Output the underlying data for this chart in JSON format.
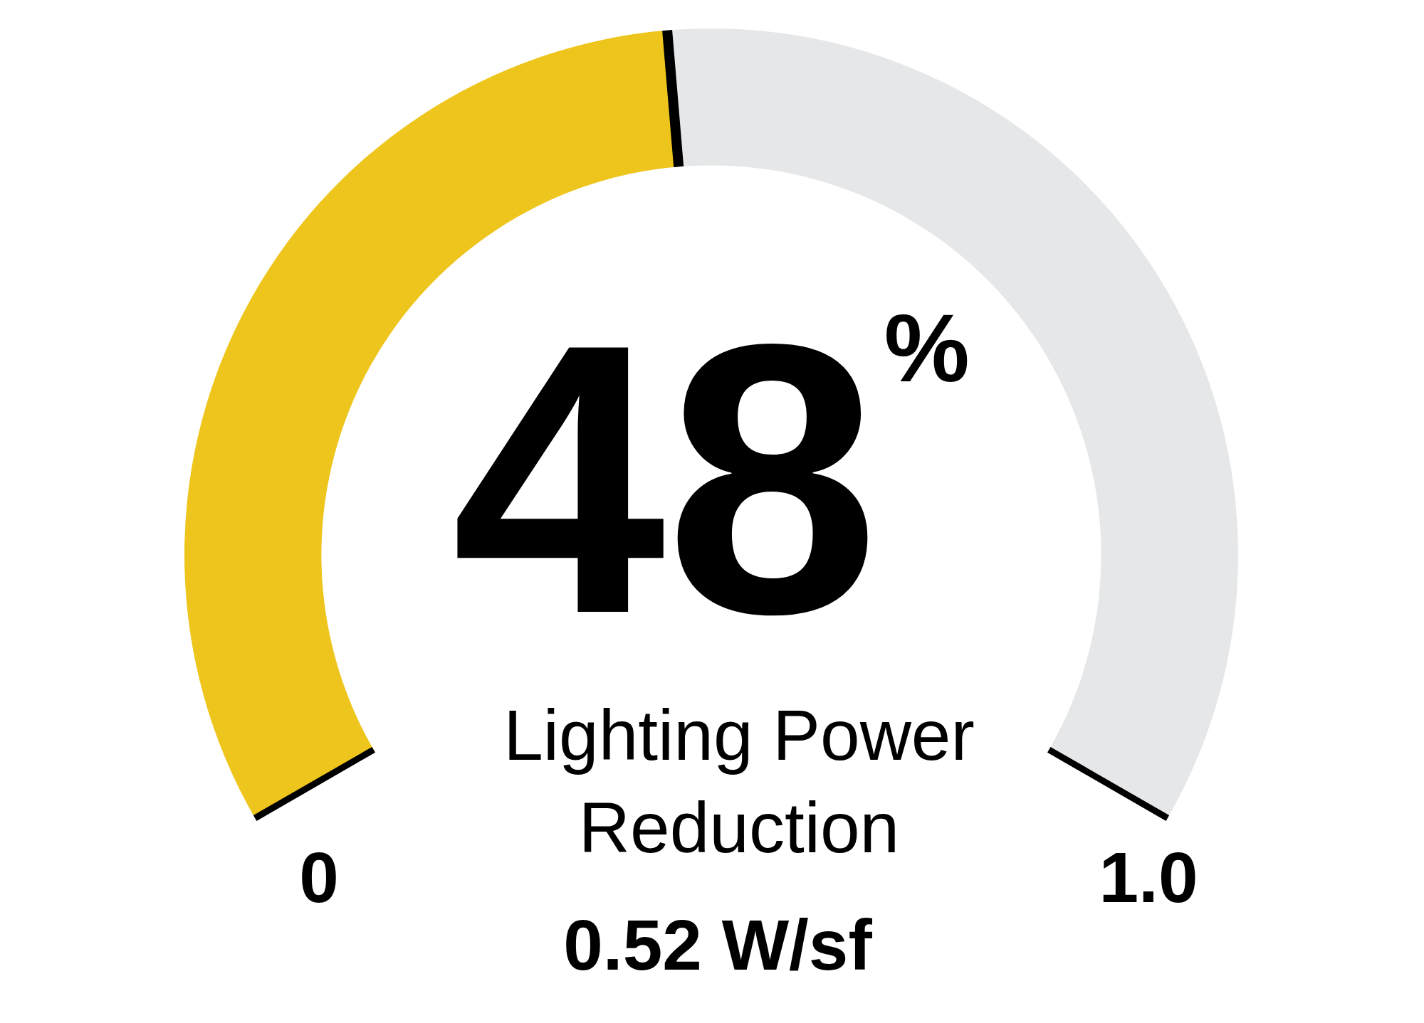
{
  "chart_data": {
    "type": "donut",
    "categories": [
      null,
      null
    ],
    "values": [
      48,
      52
    ],
    "colors": [
      "#eec51c",
      "#e6e7e8"
    ],
    "legend": false,
    "annotations": [
      "48$^{%}$",
      "Lighting Power Reduction",
      "0.52 W/sf",
      "0",
      "1.0"
    ]
  }
}
